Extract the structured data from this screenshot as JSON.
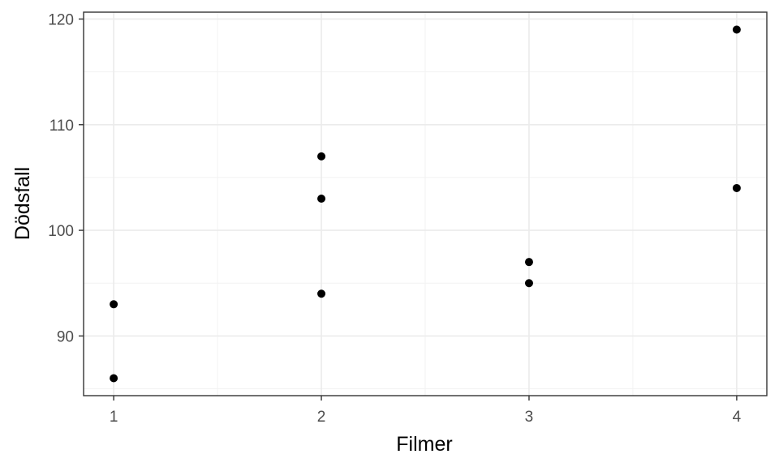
{
  "chart_data": {
    "type": "scatter",
    "xlabel": "Filmer",
    "ylabel": "Dödsfall",
    "xlim": [
      0.855,
      4.145
    ],
    "ylim": [
      84.35,
      120.65
    ],
    "x_ticks": [
      1,
      2,
      3,
      4
    ],
    "y_ticks": [
      90,
      100,
      110,
      120
    ],
    "x_tick_labels": [
      "1",
      "2",
      "3",
      "4"
    ],
    "y_tick_labels": [
      "90",
      "100",
      "110",
      "120"
    ],
    "grid": true,
    "points": [
      {
        "x": 1,
        "y": 93
      },
      {
        "x": 1,
        "y": 86
      },
      {
        "x": 2,
        "y": 107
      },
      {
        "x": 2,
        "y": 103
      },
      {
        "x": 2,
        "y": 94
      },
      {
        "x": 3,
        "y": 97
      },
      {
        "x": 3,
        "y": 95
      },
      {
        "x": 4,
        "y": 119
      },
      {
        "x": 4,
        "y": 104
      }
    ],
    "colors": {
      "point": "#000000",
      "grid_major": "#ebebeb",
      "grid_minor": "#f2f2f2",
      "panel_border": "#333333"
    }
  }
}
